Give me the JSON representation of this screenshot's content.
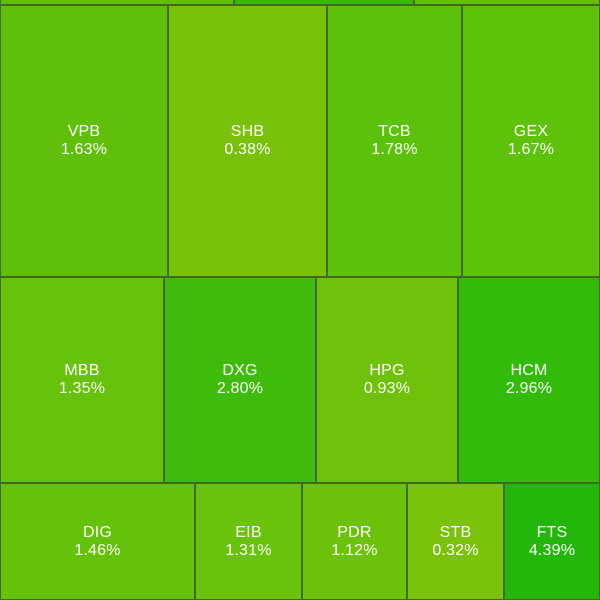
{
  "heatmap": {
    "tiles": [
      {
        "symbol": "VPB",
        "change": "1.63%",
        "color": "#5fbf0b"
      },
      {
        "symbol": "SHB",
        "change": "0.38%",
        "color": "#79c10a"
      },
      {
        "symbol": "TCB",
        "change": "1.78%",
        "color": "#5cc10a"
      },
      {
        "symbol": "GEX",
        "change": "1.67%",
        "color": "#5ec10a"
      },
      {
        "symbol": "MBB",
        "change": "1.35%",
        "color": "#67c20b"
      },
      {
        "symbol": "DXG",
        "change": "2.80%",
        "color": "#3fbc0b"
      },
      {
        "symbol": "HPG",
        "change": "0.93%",
        "color": "#6fc10b"
      },
      {
        "symbol": "HCM",
        "change": "2.96%",
        "color": "#33bb0a"
      },
      {
        "symbol": "DIG",
        "change": "1.46%",
        "color": "#65c10a"
      },
      {
        "symbol": "EIB",
        "change": "1.31%",
        "color": "#69c20b"
      },
      {
        "symbol": "PDR",
        "change": "1.12%",
        "color": "#6cc20b"
      },
      {
        "symbol": "STB",
        "change": "0.32%",
        "color": "#7bc20a"
      },
      {
        "symbol": "FTS",
        "change": "4.39%",
        "color": "#22b70a"
      }
    ],
    "top_partial_tiles": [
      {
        "color": "#5fbf0b"
      },
      {
        "color": "#36b90a"
      },
      {
        "color": "#62c00a"
      }
    ]
  }
}
